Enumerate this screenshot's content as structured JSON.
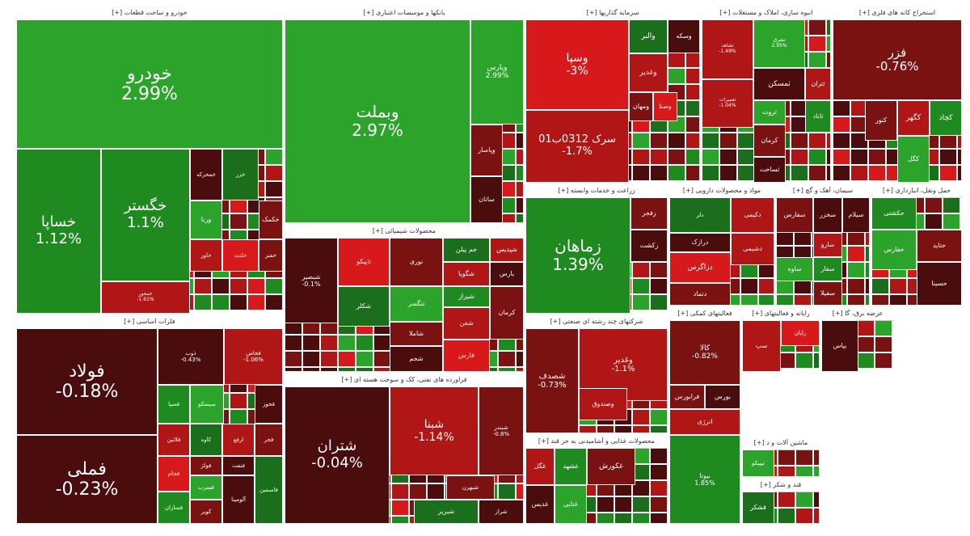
{
  "colors": {
    "strong_green": "#2ca42c",
    "green": "#1f8a1f",
    "dark_green": "#1b6e1b",
    "strong_red": "#d7191c",
    "red": "#b01616",
    "dark_red": "#7a1212",
    "darkest_red": "#4a0c0c"
  },
  "chart_data": {
    "type": "treemap",
    "title": "",
    "sectors": [
      {
        "label": "خودرو و ساخت قطعات [+]",
        "tiles": [
          {
            "name": "خودرو",
            "change": "2.99%"
          },
          {
            "name": "خگستر",
            "change": "1.1%"
          },
          {
            "name": "خساپا",
            "change": "1.12%"
          },
          {
            "name": "خمحور",
            "change": "-1.61%"
          },
          {
            "name": "ورنا",
            "change": ""
          },
          {
            "name": "خکمک",
            "change": ""
          },
          {
            "name": "خمحرکه",
            "change": ""
          },
          {
            "name": "خزر",
            "change": ""
          },
          {
            "name": "خاور",
            "change": ""
          },
          {
            "name": "خلنت",
            "change": ""
          },
          {
            "name": "خفنر",
            "change": ""
          }
        ]
      },
      {
        "label": "بانکها و موسسات اعتباری [+]",
        "tiles": [
          {
            "name": "وبملت",
            "change": "2.97%"
          },
          {
            "name": "وپارس",
            "change": "2.99%"
          },
          {
            "name": "وپاسار",
            "change": ""
          },
          {
            "name": "ساتان",
            "change": ""
          }
        ]
      },
      {
        "label": "محصولات شیمیائی [+]",
        "tiles": [
          {
            "name": "شبصیر",
            "change": "-0.1%"
          },
          {
            "name": "جم پیلن",
            "change": ""
          },
          {
            "name": "شپدیس",
            "change": ""
          },
          {
            "name": "تاپیکو",
            "change": ""
          },
          {
            "name": "نوری",
            "change": ""
          },
          {
            "name": "بارس",
            "change": ""
          },
          {
            "name": "شگویا",
            "change": ""
          },
          {
            "name": "شیراز",
            "change": ""
          },
          {
            "name": "تنگسر",
            "change": ""
          },
          {
            "name": "شاملا",
            "change": ""
          },
          {
            "name": "شجم",
            "change": ""
          },
          {
            "name": "شکلر",
            "change": ""
          },
          {
            "name": "شفن",
            "change": ""
          },
          {
            "name": "فارس",
            "change": ""
          },
          {
            "name": "کرمان",
            "change": ""
          }
        ]
      },
      {
        "label": "فلزات اساسی [+]",
        "tiles": [
          {
            "name": "فولاد",
            "change": "-0.18%"
          },
          {
            "name": "فملی",
            "change": "-0.23%"
          },
          {
            "name": "ذوب",
            "change": "-0.43%"
          },
          {
            "name": "فخاس",
            "change": "-1.06%"
          },
          {
            "name": "فسپا",
            "change": ""
          },
          {
            "name": "سیسکو",
            "change": ""
          },
          {
            "name": "فجر",
            "change": ""
          },
          {
            "name": "فخوز",
            "change": ""
          },
          {
            "name": "کاوه",
            "change": ""
          },
          {
            "name": "ارفع",
            "change": ""
          },
          {
            "name": "فجام",
            "change": ""
          },
          {
            "name": "فولژ",
            "change": ""
          },
          {
            "name": "فنفت",
            "change": ""
          },
          {
            "name": "فلاتین",
            "change": ""
          },
          {
            "name": "فسازان",
            "change": ""
          },
          {
            "name": "فسرب",
            "change": ""
          },
          {
            "name": "کویر",
            "change": ""
          },
          {
            "name": "آلومینا",
            "change": ""
          },
          {
            "name": "فاسمین",
            "change": ""
          }
        ]
      },
      {
        "label": "فراورده های نفتی، کک و سوخت هسته ای [+]",
        "tiles": [
          {
            "name": "شتران",
            "change": "-0.04%"
          },
          {
            "name": "شبنا",
            "change": "-1.14%"
          },
          {
            "name": "شبندر",
            "change": "-0.8%"
          },
          {
            "name": "شبهرن",
            "change": ""
          },
          {
            "name": "شراز",
            "change": ""
          },
          {
            "name": "شبریز",
            "change": ""
          }
        ]
      },
      {
        "label": "سرمایه گذاریها [+]",
        "tiles": [
          {
            "name": "وسپا",
            "change": "-3%"
          },
          {
            "name": "سرک 0312ب01",
            "change": "-1.7%"
          },
          {
            "name": "والبر",
            "change": ""
          },
          {
            "name": "وغدیر",
            "change": ""
          },
          {
            "name": "وصنا",
            "change": ""
          },
          {
            "name": "ومهان",
            "change": ""
          },
          {
            "name": "وسکه",
            "change": ""
          }
        ]
      },
      {
        "label": "انبوه سازی، املاک و مستغلات [+]",
        "tiles": [
          {
            "name": "ثشاهد",
            "change": "-1.49%"
          },
          {
            "name": "ثشرق",
            "change": "2.95%"
          },
          {
            "name": "تعمیرات",
            "change": "-1.04%"
          },
          {
            "name": "ثمسکن",
            "change": ""
          },
          {
            "name": "ثتران",
            "change": ""
          },
          {
            "name": "ثاباد",
            "change": ""
          },
          {
            "name": "ثروت",
            "change": ""
          },
          {
            "name": "کرمان",
            "change": ""
          },
          {
            "name": "ثساخت",
            "change": ""
          }
        ]
      },
      {
        "label": "استخراج کانه های فلزی [+]",
        "tiles": [
          {
            "name": "فزر",
            "change": "-0.76%"
          },
          {
            "name": "کگهر",
            "change": ""
          },
          {
            "name": "کچاد",
            "change": ""
          },
          {
            "name": "کگل",
            "change": ""
          },
          {
            "name": "کنور",
            "change": ""
          }
        ]
      },
      {
        "label": "زراعت و خدمات وابسته [+]",
        "tiles": [
          {
            "name": "زماهان",
            "change": "1.39%"
          },
          {
            "name": "زفجر",
            "change": ""
          },
          {
            "name": "زکشت",
            "change": ""
          }
        ]
      },
      {
        "label": "مواد و محصولات دارویی [+]",
        "tiles": [
          {
            "name": "دلر",
            "change": ""
          },
          {
            "name": "دکیمی",
            "change": ""
          },
          {
            "name": "دزاگرس",
            "change": ""
          },
          {
            "name": "دتماد",
            "change": ""
          },
          {
            "name": "درازک",
            "change": ""
          },
          {
            "name": "دشیمی",
            "change": ""
          }
        ]
      },
      {
        "label": "سیمان، آهک و گچ [+]",
        "tiles": [
          {
            "name": "سفارس",
            "change": ""
          },
          {
            "name": "سخزر",
            "change": ""
          },
          {
            "name": "سارو",
            "change": ""
          },
          {
            "name": "سفار",
            "change": ""
          },
          {
            "name": "ساوه",
            "change": ""
          },
          {
            "name": "سفیلا",
            "change": ""
          },
          {
            "name": "سیلام",
            "change": ""
          }
        ]
      },
      {
        "label": "حمل ونقل، انبارداری [+]",
        "tiles": [
          {
            "name": "حکشتی",
            "change": ""
          },
          {
            "name": "حفارس",
            "change": ""
          },
          {
            "name": "حتاید",
            "change": ""
          },
          {
            "name": "حسینا",
            "change": ""
          }
        ]
      },
      {
        "label": "شرکتهای چند رشته ای صنعتی [+]",
        "tiles": [
          {
            "name": "شصدف",
            "change": "-0.73%"
          },
          {
            "name": "وغدیر",
            "change": "-1.1%"
          },
          {
            "name": "وصندوق",
            "change": ""
          }
        ]
      },
      {
        "label": "فعالیتهای کمکی [+]",
        "tiles": [
          {
            "name": "کالا",
            "change": "-0.82%"
          },
          {
            "name": "فرابورس",
            "change": ""
          },
          {
            "name": "بورس",
            "change": ""
          },
          {
            "name": "انرژی",
            "change": ""
          }
        ]
      },
      {
        "label": "محصولات غذایی و آشامیدنی به جز قند [+]",
        "tiles": [
          {
            "name": "غگل",
            "change": ""
          },
          {
            "name": "غشهد",
            "change": ""
          },
          {
            "name": "غنابی",
            "change": ""
          },
          {
            "name": "غکورش",
            "change": ""
          },
          {
            "name": "غدیس",
            "change": ""
          }
        ]
      },
      {
        "label": "",
        "tiles": [
          {
            "name": "بیوتا",
            "change": "1.85%"
          }
        ]
      },
      {
        "label": "رایانه و فعالیتهای [+]",
        "tiles": [
          {
            "name": "سپ",
            "change": ""
          },
          {
            "name": "رایان",
            "change": ""
          }
        ]
      },
      {
        "label": "عرضه برق، گا [+]",
        "tiles": [
          {
            "name": "بپاس",
            "change": ""
          }
        ]
      },
      {
        "label": "ماشین آلات و د [+]",
        "tiles": [
          {
            "name": "تیپیکو",
            "change": ""
          }
        ]
      },
      {
        "label": "قند و شکر [+]",
        "tiles": [
          {
            "name": "قشکر",
            "change": ""
          }
        ]
      }
    ]
  }
}
